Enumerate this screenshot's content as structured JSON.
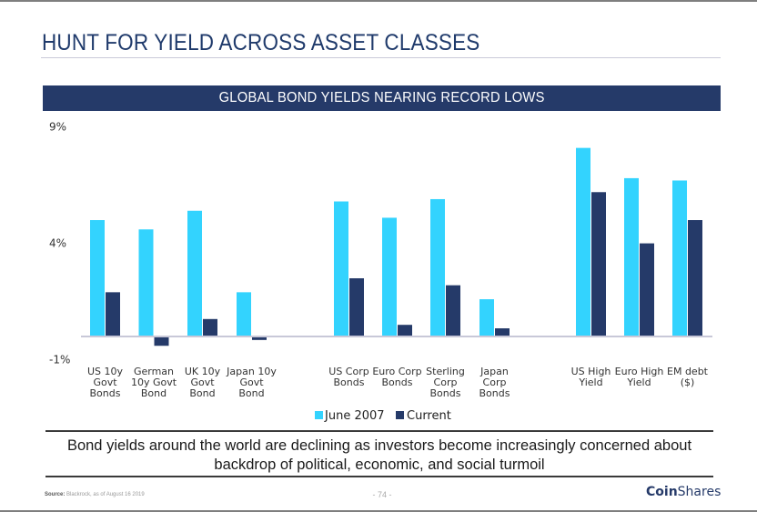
{
  "header": {
    "title": "HUNT FOR YIELD ACROSS ASSET CLASSES",
    "band_title": "GLOBAL BOND YIELDS NEARING RECORD LOWS"
  },
  "colors": {
    "june2007": "#33d3fe",
    "current": "#253a69",
    "band": "#253a69"
  },
  "chart_data": {
    "type": "bar",
    "title": "GLOBAL BOND YIELDS NEARING RECORD LOWS",
    "xlabel": "",
    "ylabel": "",
    "ylim": [
      -1,
      9
    ],
    "yticks": [
      {
        "value": 9,
        "label": "9%"
      },
      {
        "value": 4,
        "label": "4%"
      },
      {
        "value": -1,
        "label": "-1%"
      }
    ],
    "grid": false,
    "legend_position": "bottom",
    "categories": [
      {
        "lines": [
          "US 10y",
          "Govt",
          "Bonds"
        ],
        "group": 0
      },
      {
        "lines": [
          "German",
          "10y Govt",
          "Bond"
        ],
        "group": 0
      },
      {
        "lines": [
          "UK 10y",
          "Govt",
          "Bond"
        ],
        "group": 0
      },
      {
        "lines": [
          "Japan 10y",
          "Govt",
          "Bond"
        ],
        "group": 0
      },
      {
        "lines": [
          "US Corp",
          "Bonds"
        ],
        "group": 1
      },
      {
        "lines": [
          "Euro Corp",
          "Bonds"
        ],
        "group": 1
      },
      {
        "lines": [
          "Sterling",
          "Corp",
          "Bonds"
        ],
        "group": 1
      },
      {
        "lines": [
          "Japan",
          "Corp",
          "Bonds"
        ],
        "group": 1
      },
      {
        "lines": [
          "US High",
          "Yield"
        ],
        "group": 2
      },
      {
        "lines": [
          "Euro High",
          "Yield"
        ],
        "group": 2
      },
      {
        "lines": [
          "EM debt",
          "($)"
        ],
        "group": 2
      }
    ],
    "series": [
      {
        "name": "June 2007",
        "color": "#33d3fe",
        "values": [
          5.0,
          4.6,
          5.4,
          1.9,
          5.8,
          5.1,
          5.9,
          1.6,
          8.1,
          6.8,
          6.7
        ]
      },
      {
        "name": "Current",
        "color": "#253a69",
        "values": [
          1.9,
          -0.4,
          0.75,
          -0.15,
          2.5,
          0.5,
          2.2,
          0.35,
          6.2,
          4.0,
          5.0
        ]
      }
    ]
  },
  "legend": {
    "june2007": "June 2007",
    "current": "Current"
  },
  "caption": {
    "line1": "Bond yields around the world are declining as investors become increasingly concerned about",
    "line2": "backdrop of political, economic, and social turmoil"
  },
  "footer": {
    "source_label": "Source:",
    "source_text": " Blackrock, as of August 16 2019",
    "page_number": "- 74 -",
    "logo_bold": "Coin",
    "logo_regular": "Shares"
  }
}
